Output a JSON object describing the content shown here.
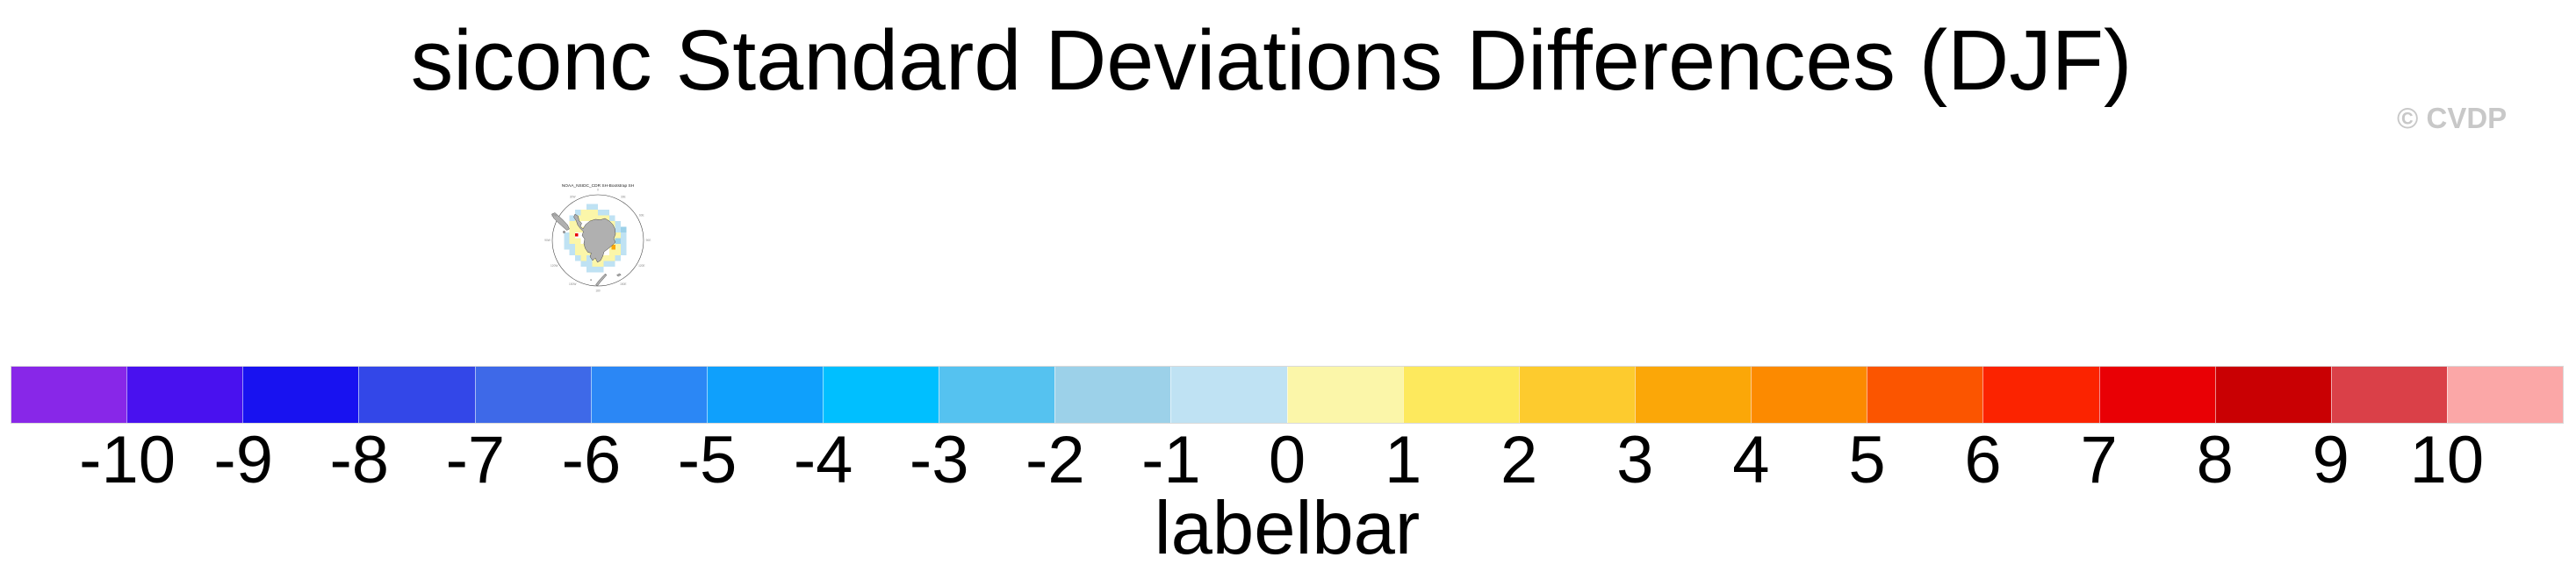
{
  "header": {
    "title": "siconc Standard Deviations Differences (DJF)",
    "watermark": "© CVDP"
  },
  "map": {
    "title": "NOAA_NSIDC_CDR SH-Bootstrap SH",
    "lon_labels": [
      "0",
      "30E",
      "60E",
      "90E",
      "120E",
      "150E",
      "180",
      "150W",
      "120W",
      "90W",
      "60W",
      "30W"
    ]
  },
  "labelbar": {
    "title": "labelbar",
    "ticks": [
      "-10",
      "-9",
      "-8",
      "-7",
      "-6",
      "-5",
      "-4",
      "-3",
      "-2",
      "-1",
      "0",
      "1",
      "2",
      "3",
      "4",
      "5",
      "6",
      "7",
      "8",
      "9",
      "10"
    ],
    "colors": [
      "#8827E8",
      "#4911EF",
      "#1812F0",
      "#3347E8",
      "#3E69E8",
      "#2B87F5",
      "#0FA0FC",
      "#00BFFF",
      "#55C2F0",
      "#9CD1E9",
      "#BFE2F3",
      "#FBF6A9",
      "#FDE95D",
      "#FDCB2E",
      "#FBA708",
      "#FC8A00",
      "#FB5500",
      "#FB2300",
      "#E90005",
      "#C90003",
      "#DA4048",
      "#FBA7A7"
    ]
  },
  "chart_data": {
    "type": "heatmap",
    "title": "siconc Standard Deviations Differences (DJF)",
    "variable": "siconc",
    "season": "DJF",
    "panels": [
      {
        "title": "NOAA_NSIDC_CDR SH-Bootstrap SH",
        "projection": "south polar stereographic"
      }
    ],
    "colorbar": {
      "label": "labelbar",
      "tick_values": [
        -10,
        -9,
        -8,
        -7,
        -6,
        -5,
        -4,
        -3,
        -2,
        -1,
        0,
        1,
        2,
        3,
        4,
        5,
        6,
        7,
        8,
        9,
        10
      ],
      "n_boxes": 22,
      "colors": [
        "#8827E8",
        "#4911EF",
        "#1812F0",
        "#3347E8",
        "#3E69E8",
        "#2B87F5",
        "#0FA0FC",
        "#00BFFF",
        "#55C2F0",
        "#9CD1E9",
        "#BFE2F3",
        "#FBF6A9",
        "#FDE95D",
        "#FDCB2E",
        "#FBA708",
        "#FC8A00",
        "#FB5500",
        "#FB2300",
        "#E90005",
        "#C90003",
        "#DA4048",
        "#FBA7A7"
      ],
      "orientation": "horizontal"
    }
  }
}
